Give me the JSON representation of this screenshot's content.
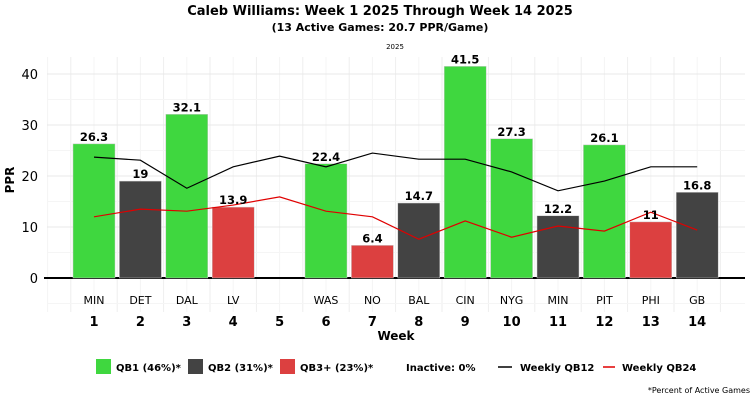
{
  "chart_data": {
    "type": "bar",
    "title": "Caleb Williams: Week 1 2025 Through Week 14 2025",
    "subtitle": "(13 Active Games: 20.7 PPR/Game)",
    "season_label": "2025",
    "xlabel": "Week",
    "ylabel": "PPR",
    "ylim": [
      -6,
      44
    ],
    "yticks": [
      0,
      10,
      20,
      30,
      40
    ],
    "grid": true,
    "categories": [
      1,
      2,
      3,
      4,
      5,
      6,
      7,
      8,
      9,
      10,
      11,
      12,
      13,
      14
    ],
    "opponents": [
      "MIN",
      "DET",
      "DAL",
      "LV",
      "",
      "WAS",
      "NO",
      "BAL",
      "CIN",
      "NYG",
      "MIN",
      "PIT",
      "PHI",
      "GB"
    ],
    "values": [
      26.3,
      19,
      32.1,
      13.9,
      null,
      22.4,
      6.4,
      14.7,
      41.5,
      27.3,
      12.2,
      26.1,
      11,
      16.8
    ],
    "tiers": [
      "QB1",
      "QB2",
      "QB1",
      "QB3+",
      null,
      "QB1",
      "QB3+",
      "QB2",
      "QB1",
      "QB1",
      "QB2",
      "QB1",
      "QB3+",
      "QB2"
    ],
    "lines": [
      {
        "name": "Weekly QB12",
        "color": "#000000",
        "values": [
          23.7,
          23.1,
          17.6,
          21.8,
          23.9,
          21.8,
          24.5,
          23.3,
          23.3,
          20.8,
          17.1,
          19.0,
          21.8,
          21.8
        ]
      },
      {
        "name": "Weekly QB24",
        "color": "#e00000",
        "values": [
          12.0,
          13.5,
          13.1,
          14.3,
          15.9,
          13.1,
          12.0,
          7.6,
          11.2,
          8.0,
          10.2,
          9.2,
          12.9,
          9.4
        ]
      }
    ],
    "legend": {
      "placement": "bottom",
      "items": [
        {
          "tier": "QB1",
          "label": "QB1 (46%)*",
          "color": "#3fd73f"
        },
        {
          "tier": "QB2",
          "label": "QB2 (31%)*",
          "color": "#434343"
        },
        {
          "tier": "QB3+",
          "label": "QB3+ (23%)*",
          "color": "#dc4040"
        }
      ],
      "inactive": "Inactive: 0%",
      "footnote": "*Percent of Active Games"
    }
  }
}
